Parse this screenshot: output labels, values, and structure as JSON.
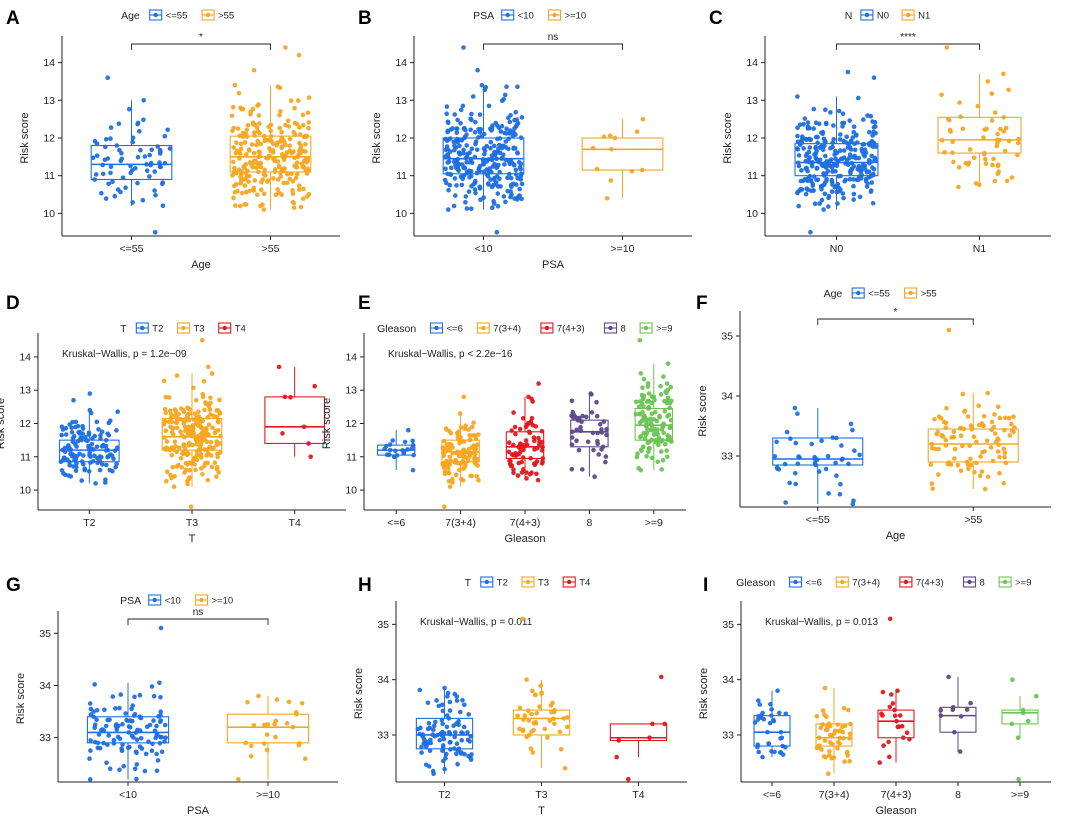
{
  "colors": {
    "blue": "#1f6fe0",
    "orange": "#f5a623",
    "red": "#e0191e",
    "purple": "#5c4a8a",
    "green": "#6cc454",
    "axis": "#222222",
    "text": "#222222"
  },
  "chart_data": [
    {
      "id": "A",
      "type": "box",
      "panel_label": "A",
      "legend_title": "Age",
      "xlabel": "Age",
      "ylabel": "Risk score",
      "ylim": [
        9.4,
        14.6
      ],
      "yticks": [
        10,
        11,
        12,
        13,
        14
      ],
      "annotation": "",
      "comparisons": [
        {
          "from": 0,
          "to": 1,
          "label": "*"
        }
      ],
      "groups": [
        {
          "name": "<=55",
          "color": "blue",
          "n": 75,
          "min": 10.2,
          "q1": 10.9,
          "median": 11.3,
          "q3": 11.8,
          "max": 13.0,
          "outliers": [
            9.5,
            13.6
          ]
        },
        {
          "name": ">55",
          "color": "orange",
          "n": 260,
          "min": 10.1,
          "q1": 11.1,
          "median": 11.5,
          "q3": 12.05,
          "max": 13.4,
          "outliers": [
            13.8,
            14.2,
            14.4
          ]
        }
      ]
    },
    {
      "id": "B",
      "type": "box",
      "panel_label": "B",
      "legend_title": "PSA",
      "xlabel": "PSA",
      "ylabel": "Risk score",
      "ylim": [
        9.4,
        14.6
      ],
      "yticks": [
        10,
        11,
        12,
        13,
        14
      ],
      "annotation": "",
      "comparisons": [
        {
          "from": 0,
          "to": 1,
          "label": "ns"
        }
      ],
      "groups": [
        {
          "name": "<10",
          "color": "blue",
          "n": 300,
          "min": 10.1,
          "q1": 11.05,
          "median": 11.45,
          "q3": 12.0,
          "max": 13.4,
          "outliers": [
            9.5,
            13.8,
            14.4
          ]
        },
        {
          "name": ">=10",
          "color": "orange",
          "n": 12,
          "min": 10.4,
          "q1": 11.15,
          "median": 11.7,
          "q3": 12.0,
          "max": 12.5,
          "outliers": []
        }
      ]
    },
    {
      "id": "C",
      "type": "box",
      "panel_label": "C",
      "legend_title": "N",
      "xlabel": "",
      "ylabel": "Risk score",
      "ylim": [
        9.4,
        14.6
      ],
      "yticks": [
        10,
        11,
        12,
        13,
        14
      ],
      "annotation": "",
      "comparisons": [
        {
          "from": 0,
          "to": 1,
          "label": "****"
        }
      ],
      "groups": [
        {
          "name": "N0",
          "color": "blue",
          "n": 300,
          "min": 10.1,
          "q1": 11.0,
          "median": 11.35,
          "q3": 11.85,
          "max": 13.1,
          "outliers": [
            9.5,
            13.6,
            13.75
          ]
        },
        {
          "name": "N1",
          "color": "orange",
          "n": 60,
          "min": 10.7,
          "q1": 11.6,
          "median": 11.95,
          "q3": 12.55,
          "max": 13.7,
          "outliers": [
            14.4
          ]
        }
      ]
    },
    {
      "id": "D",
      "type": "box",
      "panel_label": "D",
      "legend_title": "T",
      "legend_extra": [
        "T4"
      ],
      "xlabel": "T",
      "ylabel": "Risk score",
      "ylim": [
        9.4,
        14.6
      ],
      "yticks": [
        10,
        11,
        12,
        13,
        14
      ],
      "annotation": "Kruskal−Wallis, p = 1.2e−09",
      "comparisons": [],
      "groups": [
        {
          "name": "T2",
          "color": "blue",
          "n": 130,
          "min": 10.2,
          "q1": 10.85,
          "median": 11.2,
          "q3": 11.5,
          "max": 12.4,
          "outliers": [
            12.7,
            12.9
          ]
        },
        {
          "name": "T3",
          "color": "orange",
          "n": 230,
          "min": 10.1,
          "q1": 11.2,
          "median": 11.6,
          "q3": 12.15,
          "max": 13.5,
          "outliers": [
            9.5,
            13.7,
            14.5
          ]
        },
        {
          "name": "T4",
          "color": "red",
          "n": 8,
          "min": 11.0,
          "q1": 11.4,
          "median": 11.9,
          "q3": 12.8,
          "max": 13.7,
          "outliers": []
        }
      ]
    },
    {
      "id": "E",
      "type": "box",
      "panel_label": "E",
      "legend_title": "Gleason",
      "xlabel": "Gleason",
      "ylabel": "Risk score",
      "ylim": [
        9.4,
        14.6
      ],
      "yticks": [
        10,
        11,
        12,
        13,
        14
      ],
      "annotation": "Kruskal−Wallis, p < 2.2e−16",
      "comparisons": [],
      "groups": [
        {
          "name": "<=6",
          "color": "blue",
          "n": 22,
          "min": 10.6,
          "q1": 11.05,
          "median": 11.2,
          "q3": 11.35,
          "max": 11.8,
          "outliers": []
        },
        {
          "name": "7(3+4)",
          "color": "orange",
          "n": 120,
          "min": 10.1,
          "q1": 10.85,
          "median": 11.15,
          "q3": 11.5,
          "max": 12.3,
          "outliers": [
            9.5,
            12.8
          ]
        },
        {
          "name": "7(4+3)",
          "color": "red",
          "n": 80,
          "min": 10.3,
          "q1": 10.95,
          "median": 11.3,
          "q3": 11.75,
          "max": 12.8,
          "outliers": [
            13.2
          ]
        },
        {
          "name": "8",
          "color": "purple",
          "n": 45,
          "min": 10.4,
          "q1": 11.3,
          "median": 11.75,
          "q3": 12.1,
          "max": 12.9,
          "outliers": []
        },
        {
          "name": ">=9",
          "color": "green",
          "n": 130,
          "min": 10.6,
          "q1": 11.5,
          "median": 11.95,
          "q3": 12.45,
          "max": 13.8,
          "outliers": [
            14.5
          ]
        }
      ]
    },
    {
      "id": "F",
      "type": "box",
      "panel_label": "F",
      "legend_title": "Age",
      "xlabel": "Age",
      "ylabel": "Risk score",
      "ylim": [
        32.15,
        35.35
      ],
      "yticks": [
        33,
        34,
        35
      ],
      "annotation": "",
      "comparisons": [
        {
          "from": 0,
          "to": 1,
          "label": "*"
        }
      ],
      "groups": [
        {
          "name": "<=55",
          "color": "blue",
          "n": 45,
          "min": 32.2,
          "q1": 32.85,
          "median": 32.95,
          "q3": 33.3,
          "max": 33.8,
          "outliers": []
        },
        {
          "name": ">55",
          "color": "orange",
          "n": 100,
          "min": 32.45,
          "q1": 32.9,
          "median": 33.2,
          "q3": 33.45,
          "max": 34.05,
          "outliers": [
            35.1
          ]
        }
      ]
    },
    {
      "id": "G",
      "type": "box",
      "panel_label": "G",
      "legend_title": "PSA",
      "xlabel": "PSA",
      "ylabel": "Risk score",
      "ylim": [
        32.15,
        35.35
      ],
      "yticks": [
        33,
        34,
        35
      ],
      "annotation": "",
      "comparisons": [
        {
          "from": 0,
          "to": 1,
          "label": "ns"
        }
      ],
      "groups": [
        {
          "name": "<10",
          "color": "blue",
          "n": 115,
          "min": 32.2,
          "q1": 32.9,
          "median": 33.1,
          "q3": 33.4,
          "max": 34.05,
          "outliers": [
            35.1
          ]
        },
        {
          "name": ">=10",
          "color": "orange",
          "n": 25,
          "min": 32.2,
          "q1": 32.9,
          "median": 33.2,
          "q3": 33.45,
          "max": 33.8,
          "outliers": []
        }
      ]
    },
    {
      "id": "H",
      "type": "box",
      "panel_label": "H",
      "legend_title": "T",
      "xlabel": "T",
      "ylabel": "Risk score",
      "ylim": [
        32.15,
        35.35
      ],
      "yticks": [
        33,
        34,
        35
      ],
      "annotation": "Kruskal−Wallis, p = 0.011",
      "comparisons": [],
      "groups": [
        {
          "name": "T2",
          "color": "blue",
          "n": 100,
          "min": 32.3,
          "q1": 32.75,
          "median": 33.0,
          "q3": 33.3,
          "max": 33.85,
          "outliers": []
        },
        {
          "name": "T3",
          "color": "orange",
          "n": 45,
          "min": 32.4,
          "q1": 33.0,
          "median": 33.3,
          "q3": 33.45,
          "max": 34.0,
          "outliers": [
            35.1
          ]
        },
        {
          "name": "T4",
          "color": "red",
          "n": 6,
          "min": 32.6,
          "q1": 32.9,
          "median": 32.95,
          "q3": 33.2,
          "max": 33.2,
          "outliers": [
            32.2,
            34.05
          ]
        }
      ]
    },
    {
      "id": "I",
      "type": "box",
      "panel_label": "I",
      "legend_title": "Gleason",
      "xlabel": "Gleason",
      "ylabel": "Risk score",
      "ylim": [
        32.15,
        35.35
      ],
      "yticks": [
        33,
        34,
        35
      ],
      "annotation": "Kruskal−Wallis, p = 0.013",
      "comparisons": [],
      "groups": [
        {
          "name": "<=6",
          "color": "blue",
          "n": 35,
          "min": 32.6,
          "q1": 32.8,
          "median": 33.05,
          "q3": 33.35,
          "max": 33.8,
          "outliers": []
        },
        {
          "name": "7(3+4)",
          "color": "orange",
          "n": 55,
          "min": 32.3,
          "q1": 32.8,
          "median": 32.95,
          "q3": 33.2,
          "max": 33.85,
          "outliers": []
        },
        {
          "name": "7(4+3)",
          "color": "red",
          "n": 22,
          "min": 32.5,
          "q1": 32.95,
          "median": 33.25,
          "q3": 33.45,
          "max": 33.8,
          "outliers": [
            35.1
          ]
        },
        {
          "name": "8",
          "color": "purple",
          "n": 10,
          "min": 32.7,
          "q1": 33.05,
          "median": 33.35,
          "q3": 33.5,
          "max": 34.05,
          "outliers": []
        },
        {
          "name": ">=9",
          "color": "green",
          "n": 8,
          "min": 32.95,
          "q1": 33.2,
          "median": 33.4,
          "q3": 33.45,
          "max": 33.7,
          "outliers": [
            32.2,
            34.0
          ]
        }
      ]
    }
  ]
}
